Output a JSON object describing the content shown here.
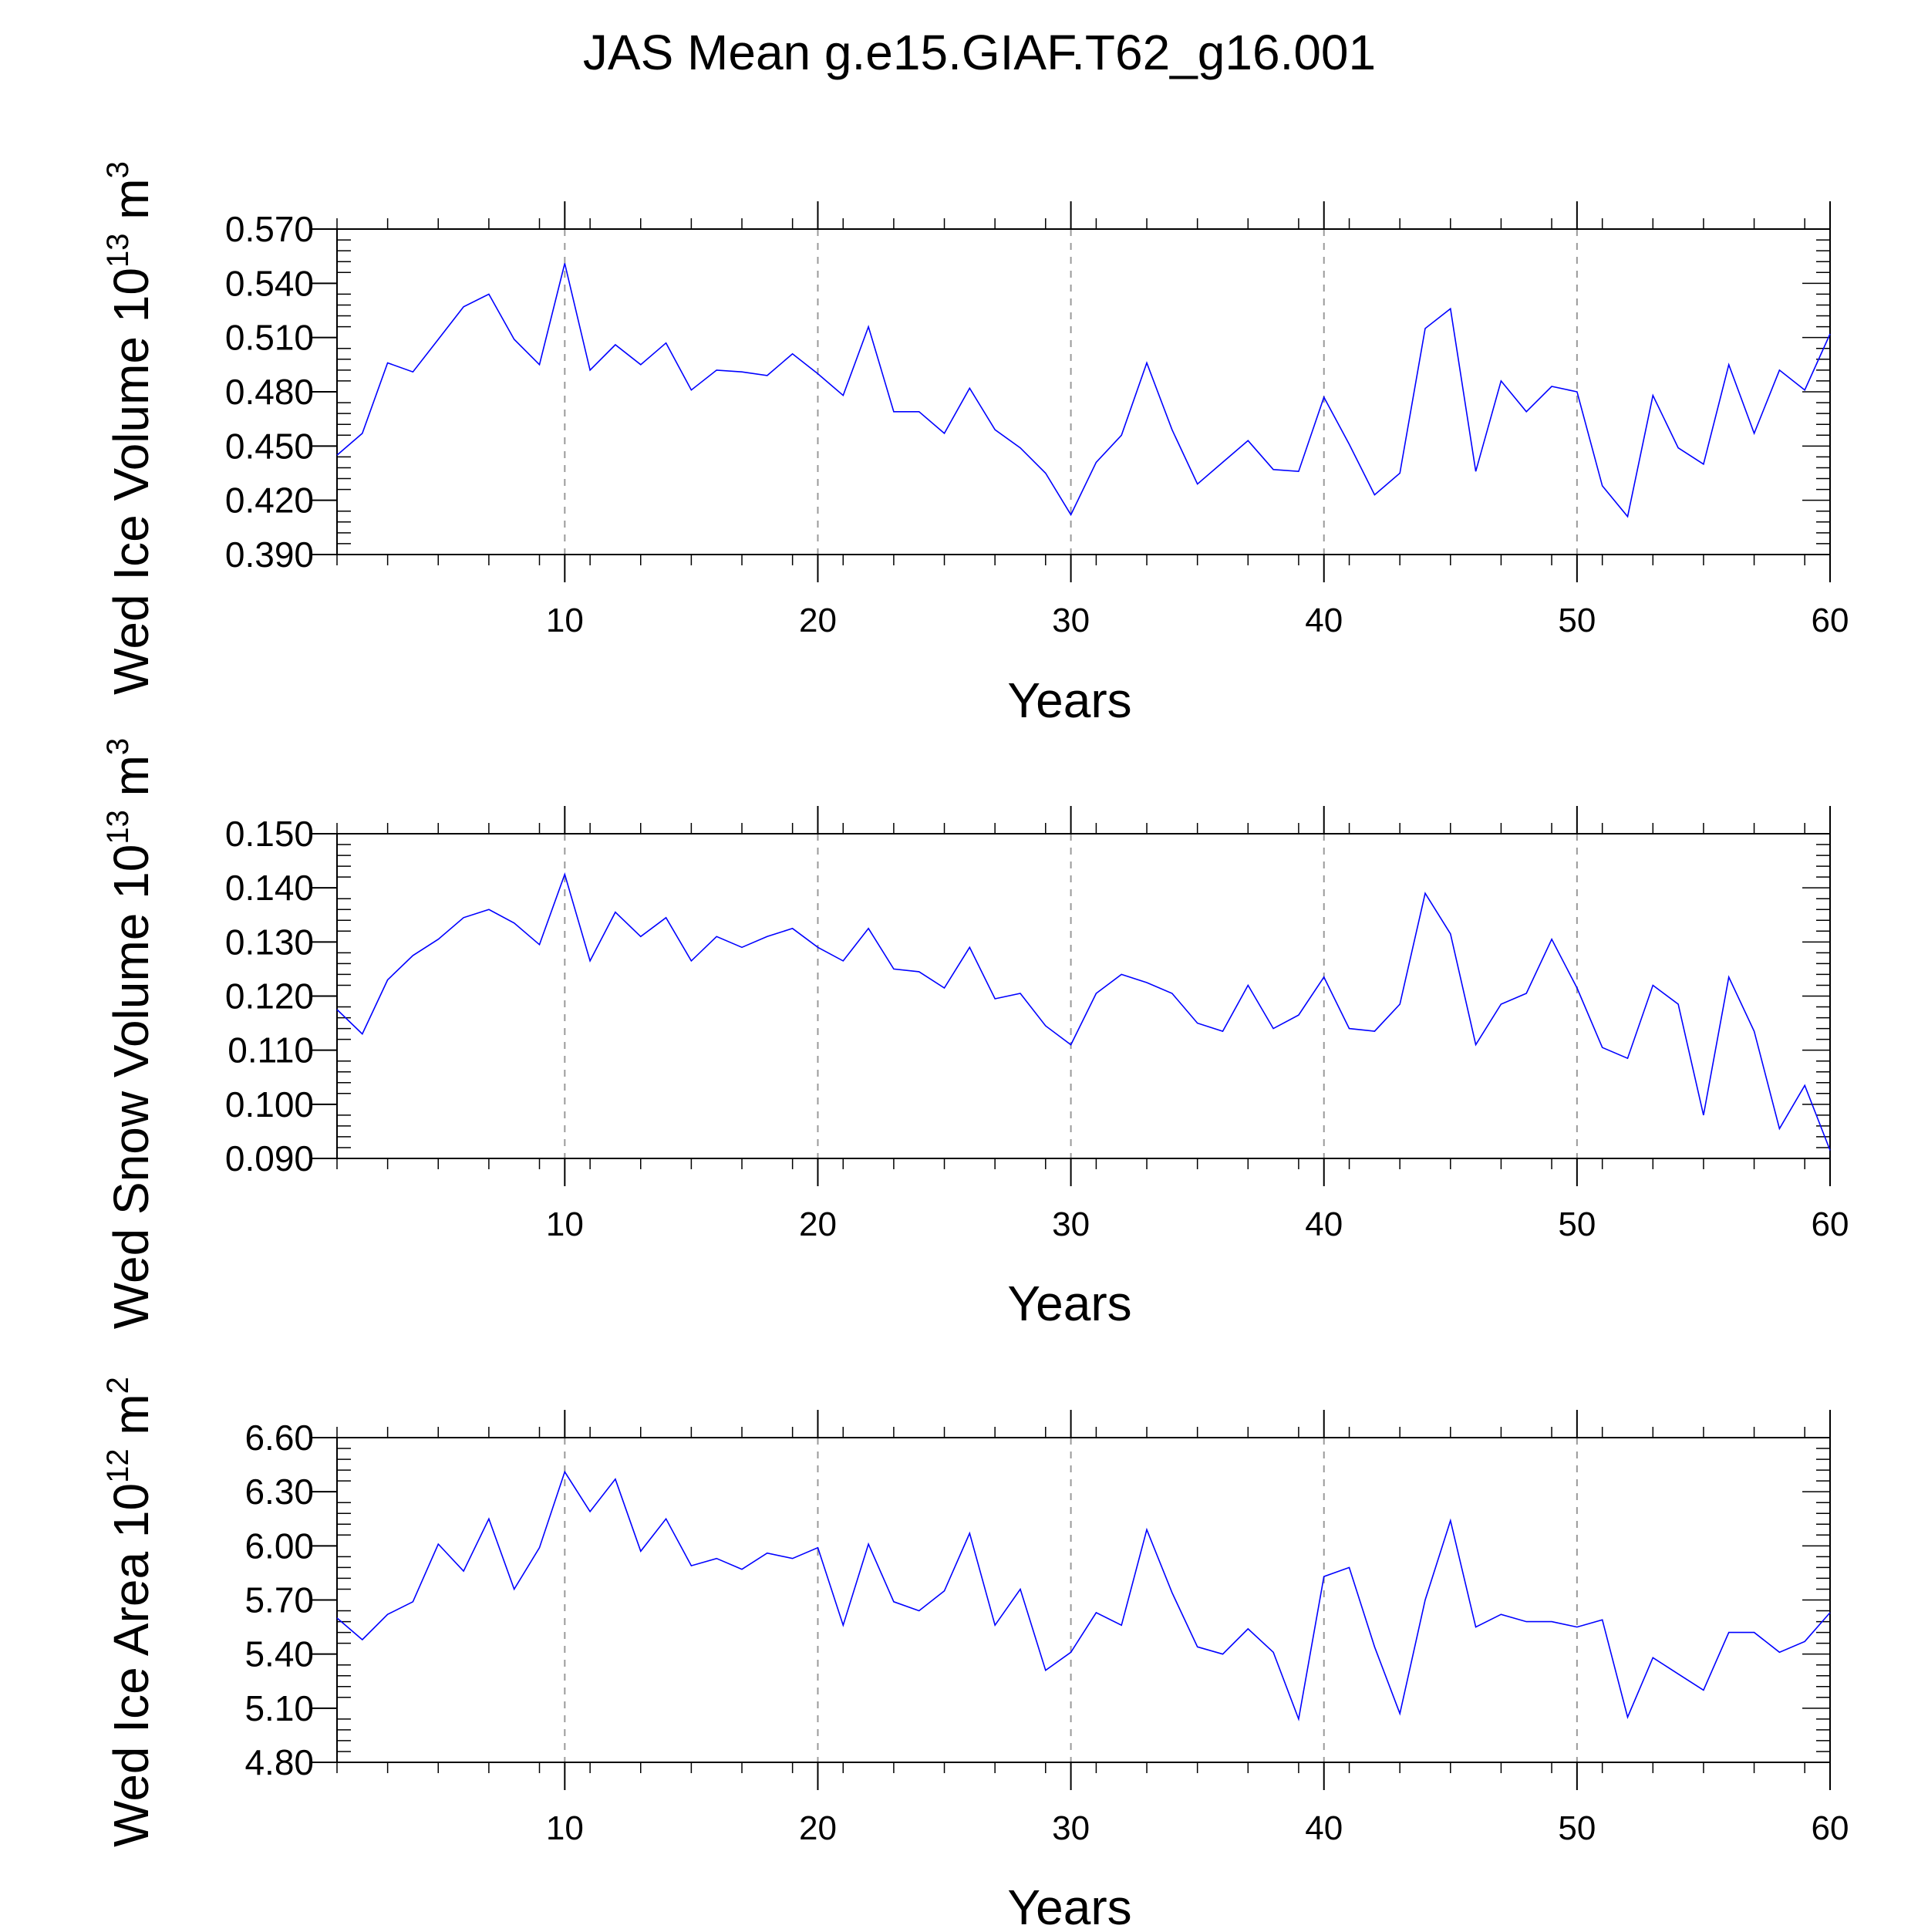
{
  "title": "JAS Mean g.e15.GIAF.T62_g16.001",
  "chart_data": [
    {
      "type": "line",
      "ylabel": {
        "main": "Wed Ice Volume 10",
        "sup": "13",
        "unit": " m",
        "unit_sup": "3"
      },
      "xlabel": "Years",
      "xlim": [
        1,
        60
      ],
      "ylim": [
        0.39,
        0.57
      ],
      "yticks": [
        "0.390",
        "0.420",
        "0.450",
        "0.480",
        "0.510",
        "0.540",
        "0.570"
      ],
      "xticks": [
        "10",
        "20",
        "30",
        "40",
        "50",
        "60"
      ],
      "grid": "x-dashed",
      "line_color": "#0000ff",
      "x": [
        1,
        2,
        3,
        4,
        5,
        6,
        7,
        8,
        9,
        10,
        11,
        12,
        13,
        14,
        15,
        16,
        17,
        18,
        19,
        20,
        21,
        22,
        23,
        24,
        25,
        26,
        27,
        28,
        29,
        30,
        31,
        32,
        33,
        34,
        35,
        36,
        37,
        38,
        39,
        40,
        41,
        42,
        43,
        44,
        45,
        46,
        47,
        48,
        49,
        50,
        51,
        52,
        53,
        54,
        55,
        56,
        57,
        58,
        59,
        60
      ],
      "values": [
        0.445,
        0.457,
        0.496,
        0.491,
        0.509,
        0.527,
        0.534,
        0.509,
        0.495,
        0.551,
        0.492,
        0.506,
        0.495,
        0.507,
        0.481,
        0.492,
        0.491,
        0.489,
        0.501,
        0.49,
        0.478,
        0.516,
        0.469,
        0.469,
        0.457,
        0.482,
        0.459,
        0.449,
        0.435,
        0.412,
        0.441,
        0.456,
        0.496,
        0.459,
        0.429,
        0.441,
        0.453,
        0.437,
        0.436,
        0.477,
        0.451,
        0.423,
        0.435,
        0.515,
        0.526,
        0.436,
        0.486,
        0.469,
        0.483,
        0.48,
        0.428,
        0.411,
        0.478,
        0.449,
        0.44,
        0.495,
        0.457,
        0.492,
        0.481,
        0.512
      ]
    },
    {
      "type": "line",
      "ylabel": {
        "main": "Wed Snow Volume 10",
        "sup": "13",
        "unit": " m",
        "unit_sup": "3"
      },
      "xlabel": "Years",
      "xlim": [
        1,
        60
      ],
      "ylim": [
        0.09,
        0.15
      ],
      "yticks": [
        "0.090",
        "0.100",
        "0.110",
        "0.120",
        "0.130",
        "0.140",
        "0.150"
      ],
      "xticks": [
        "10",
        "20",
        "30",
        "40",
        "50",
        "60"
      ],
      "grid": "x-dashed",
      "line_color": "#0000ff",
      "x": [
        1,
        2,
        3,
        4,
        5,
        6,
        7,
        8,
        9,
        10,
        11,
        12,
        13,
        14,
        15,
        16,
        17,
        18,
        19,
        20,
        21,
        22,
        23,
        24,
        25,
        26,
        27,
        28,
        29,
        30,
        31,
        32,
        33,
        34,
        35,
        36,
        37,
        38,
        39,
        40,
        41,
        42,
        43,
        44,
        45,
        46,
        47,
        48,
        49,
        50,
        51,
        52,
        53,
        54,
        55,
        56,
        57,
        58,
        59,
        60
      ],
      "values": [
        0.1175,
        0.113,
        0.123,
        0.1275,
        0.1305,
        0.1345,
        0.136,
        0.1335,
        0.1295,
        0.1425,
        0.1265,
        0.1355,
        0.131,
        0.1345,
        0.1265,
        0.131,
        0.129,
        0.131,
        0.1325,
        0.129,
        0.1265,
        0.1325,
        0.125,
        0.1245,
        0.1215,
        0.129,
        0.1195,
        0.1205,
        0.1145,
        0.111,
        0.1205,
        0.124,
        0.1225,
        0.1205,
        0.115,
        0.1135,
        0.122,
        0.114,
        0.1165,
        0.1235,
        0.114,
        0.1135,
        0.1185,
        0.139,
        0.1315,
        0.111,
        0.1185,
        0.1205,
        0.1305,
        0.1215,
        0.1105,
        0.1085,
        0.122,
        0.1185,
        0.098,
        0.1235,
        0.1135,
        0.0955,
        0.1035,
        0.0915
      ]
    },
    {
      "type": "line",
      "ylabel": {
        "main": "Wed Ice Area 10",
        "sup": "12",
        "unit": " m",
        "unit_sup": "2"
      },
      "xlabel": "Years",
      "xlim": [
        1,
        60
      ],
      "ylim": [
        4.8,
        6.6
      ],
      "yticks": [
        "4.80",
        "5.10",
        "5.40",
        "5.70",
        "6.00",
        "6.30",
        "6.60"
      ],
      "xticks": [
        "10",
        "20",
        "30",
        "40",
        "50",
        "60"
      ],
      "grid": "x-dashed",
      "line_color": "#0000ff",
      "x": [
        1,
        2,
        3,
        4,
        5,
        6,
        7,
        8,
        9,
        10,
        11,
        12,
        13,
        14,
        15,
        16,
        17,
        18,
        19,
        20,
        21,
        22,
        23,
        24,
        25,
        26,
        27,
        28,
        29,
        30,
        31,
        32,
        33,
        34,
        35,
        36,
        37,
        38,
        39,
        40,
        41,
        42,
        43,
        44,
        45,
        46,
        47,
        48,
        49,
        50,
        51,
        52,
        53,
        54,
        55,
        56,
        57,
        58,
        59,
        60
      ],
      "values": [
        5.6,
        5.48,
        5.62,
        5.69,
        6.01,
        5.86,
        6.15,
        5.76,
        5.99,
        6.41,
        6.19,
        6.37,
        5.97,
        6.15,
        5.89,
        5.93,
        5.87,
        5.96,
        5.93,
        5.99,
        5.56,
        6.01,
        5.69,
        5.64,
        5.75,
        6.07,
        5.56,
        5.76,
        5.31,
        5.41,
        5.63,
        5.56,
        6.09,
        5.74,
        5.44,
        5.4,
        5.54,
        5.41,
        5.04,
        5.83,
        5.88,
        5.44,
        5.07,
        5.7,
        6.14,
        5.55,
        5.62,
        5.58,
        5.58,
        5.55,
        5.59,
        5.05,
        5.38,
        5.29,
        5.2,
        5.52,
        5.52,
        5.41,
        5.47,
        5.63
      ]
    }
  ]
}
